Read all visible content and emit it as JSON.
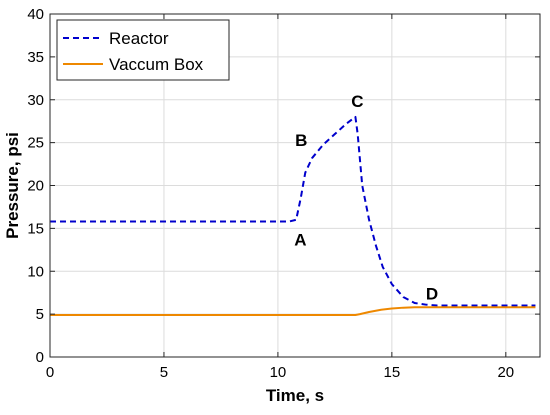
{
  "chart_data": {
    "type": "line",
    "title": "",
    "xlabel": "Time, s",
    "ylabel": "Pressure, psi",
    "xlim": [
      0,
      21.5
    ],
    "ylim": [
      0,
      40
    ],
    "xticks": [
      0,
      5,
      10,
      15,
      20
    ],
    "yticks": [
      0,
      5,
      10,
      15,
      20,
      25,
      30,
      35,
      40
    ],
    "grid": true,
    "legend_position": "top-left",
    "series": [
      {
        "name": "Reactor",
        "color": "#0000cc",
        "line_style": "dashed",
        "x": [
          0,
          10.5,
          10.8,
          11.0,
          11.2,
          11.5,
          12.0,
          12.5,
          13.0,
          13.4,
          13.5,
          13.7,
          14.0,
          14.3,
          14.6,
          15.0,
          15.5,
          16.0,
          16.5,
          17.0,
          18.0,
          19.0,
          20.0,
          21.3
        ],
        "y": [
          15.8,
          15.8,
          16.0,
          18.5,
          21.5,
          23.2,
          24.8,
          26.0,
          27.2,
          28.0,
          26.0,
          20.0,
          16.0,
          13.0,
          10.5,
          8.5,
          7.0,
          6.3,
          6.1,
          6.0,
          6.0,
          6.0,
          6.0,
          6.0
        ]
      },
      {
        "name": "Vaccum Box",
        "color": "#ee8800",
        "line_style": "solid",
        "x": [
          0,
          13.4,
          13.6,
          14.0,
          14.5,
          15.0,
          15.5,
          16.0,
          17.0,
          18.0,
          19.0,
          20.0,
          21.3
        ],
        "y": [
          4.9,
          4.9,
          5.0,
          5.25,
          5.5,
          5.65,
          5.75,
          5.8,
          5.8,
          5.8,
          5.8,
          5.8,
          5.8
        ]
      }
    ],
    "annotations": [
      {
        "text": "A",
        "x": 10.9,
        "y": 15.8
      },
      {
        "text": "B",
        "x": 11.2,
        "y": 23.2
      },
      {
        "text": "C",
        "x": 13.4,
        "y": 28.0
      },
      {
        "text": "D",
        "x": 16.5,
        "y": 6.0
      }
    ]
  }
}
